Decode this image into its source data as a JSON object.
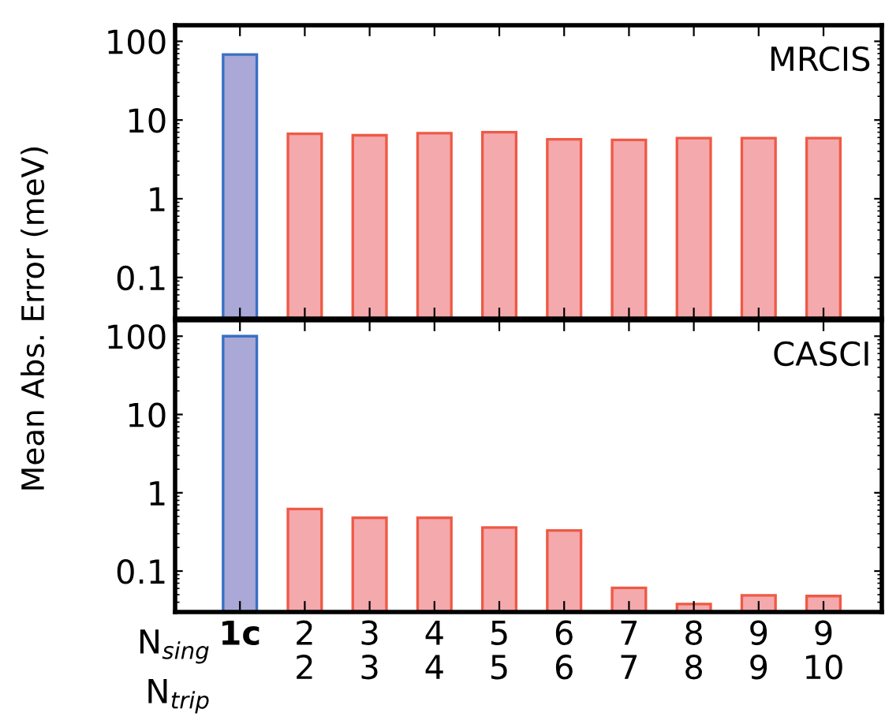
{
  "chart_data": [
    {
      "type": "bar",
      "title": "MRCIS",
      "ylabel": "Mean Abs. Error (meV)",
      "categories": [
        null,
        null,
        null,
        null,
        null,
        null,
        null,
        null,
        null,
        null
      ],
      "values": [
        68,
        6.7,
        6.4,
        6.8,
        7.0,
        5.7,
        5.6,
        5.9,
        5.9,
        5.9
      ],
      "colors": [
        "#a9a8d6",
        "#f4a9ad",
        "#f4a9ad",
        "#f4a9ad",
        "#f4a9ad",
        "#f4a9ad",
        "#f4a9ad",
        "#f4a9ad",
        "#f4a9ad",
        "#f4a9ad"
      ],
      "log": true,
      "ylim": [
        0.03,
        160
      ],
      "yticks": [
        0.1,
        1,
        10,
        100
      ],
      "tick_labels": "y",
      "grid": false,
      "legend": false
    },
    {
      "type": "bar",
      "title": "CASCI",
      "categories": [
        "1c\n ",
        "2\n2",
        "3\n3",
        "4\n4",
        "5\n5",
        "6\n6",
        "7\n7",
        "8\n8",
        "9\n9",
        "9\n10"
      ],
      "values": [
        100,
        0.62,
        0.48,
        0.48,
        0.36,
        0.33,
        0.061,
        0.038,
        0.049,
        0.048
      ],
      "colors": [
        "#a9a8d6",
        "#f4a9ad",
        "#f4a9ad",
        "#f4a9ad",
        "#f4a9ad",
        "#f4a9ad",
        "#f4a9ad",
        "#f4a9ad",
        "#f4a9ad",
        "#f4a9ad"
      ],
      "log": true,
      "ylim": [
        0.03,
        160
      ],
      "yticks": [
        0.1,
        1,
        10,
        100
      ],
      "annotations": [
        "N$_{sing}$",
        "N$_{trip}$"
      ],
      "grid": false,
      "legend": false
    }
  ]
}
